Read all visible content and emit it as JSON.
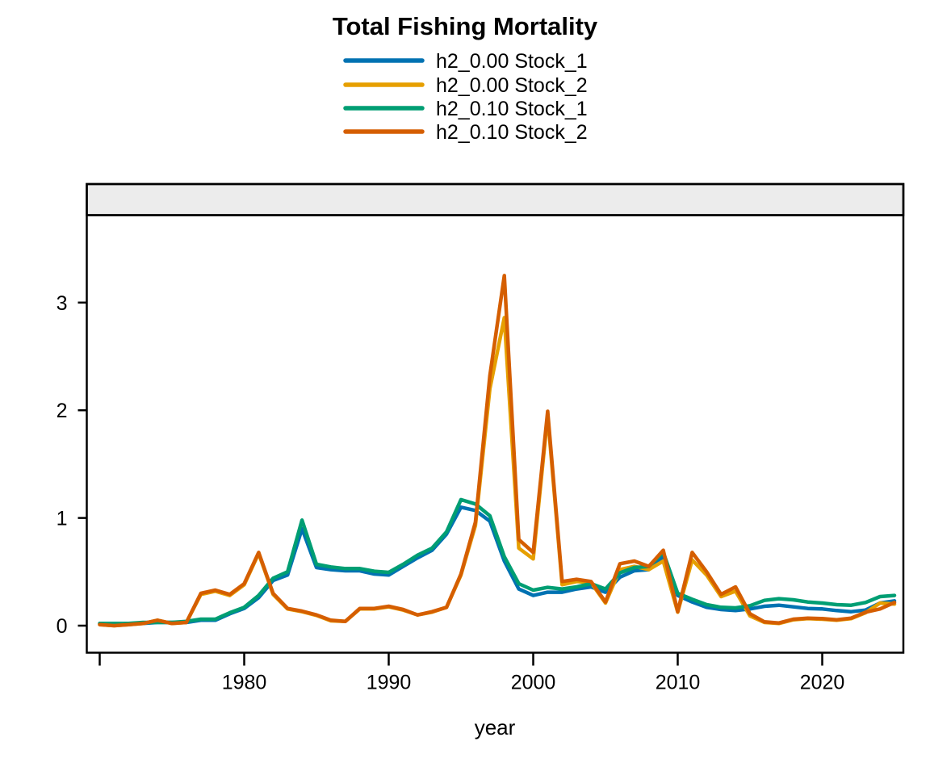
{
  "title": "Total Fishing Mortality",
  "legend": {
    "entries": [
      {
        "label": "h2_0.00 Stock_1",
        "color": "#0072B2"
      },
      {
        "label": "h2_0.00 Stock_2",
        "color": "#E69F00"
      },
      {
        "label": "h2_0.10 Stock_1",
        "color": "#009E73"
      },
      {
        "label": "h2_0.10 Stock_2",
        "color": "#D55E00"
      }
    ]
  },
  "axes": {
    "x": {
      "label": "year",
      "ticks": [
        {
          "year": 1970,
          "label": ""
        },
        {
          "year": 1980,
          "label": "1980"
        },
        {
          "year": 1990,
          "label": "1990"
        },
        {
          "year": 2000,
          "label": "2000"
        },
        {
          "year": 2010,
          "label": "2010"
        },
        {
          "year": 2020,
          "label": "2020"
        }
      ]
    },
    "y": {
      "label": "",
      "ticks": [
        {
          "value": 0,
          "label": "0"
        },
        {
          "value": 1,
          "label": "1"
        },
        {
          "value": 2,
          "label": "2"
        },
        {
          "value": 3,
          "label": "3"
        }
      ]
    }
  },
  "panel": {
    "strip_fill": "#ECECEC",
    "border_color": "#000000",
    "background": "#FFFFFF"
  },
  "chart_data": {
    "type": "line",
    "title": "Total Fishing Mortality",
    "xlabel": "year",
    "ylabel": "",
    "x_range": [
      1969.1,
      2025.7
    ],
    "y_range": [
      -0.25,
      3.81
    ],
    "grid": false,
    "legend_position": "top-center",
    "x": [
      1970,
      1971,
      1972,
      1973,
      1974,
      1975,
      1976,
      1977,
      1978,
      1979,
      1980,
      1981,
      1982,
      1983,
      1984,
      1985,
      1986,
      1987,
      1988,
      1989,
      1990,
      1991,
      1992,
      1993,
      1994,
      1995,
      1996,
      1997,
      1998,
      1999,
      2000,
      2001,
      2002,
      2003,
      2004,
      2005,
      2006,
      2007,
      2008,
      2009,
      2010,
      2011,
      2012,
      2013,
      2014,
      2015,
      2016,
      2017,
      2018,
      2019,
      2020,
      2021,
      2022,
      2023,
      2024,
      2025
    ],
    "series": [
      {
        "name": "h2_0.00 Stock_1",
        "color": "#0072B2",
        "values": [
          0.02,
          0.02,
          0.02,
          0.02,
          0.03,
          0.03,
          0.03,
          0.05,
          0.05,
          0.11,
          0.16,
          0.26,
          0.42,
          0.47,
          0.9,
          0.54,
          0.52,
          0.51,
          0.51,
          0.48,
          0.47,
          0.55,
          0.63,
          0.7,
          0.85,
          1.1,
          1.07,
          0.97,
          0.6,
          0.34,
          0.28,
          0.31,
          0.31,
          0.34,
          0.36,
          0.31,
          0.45,
          0.51,
          0.52,
          0.64,
          0.28,
          0.22,
          0.17,
          0.15,
          0.14,
          0.155,
          0.18,
          0.19,
          0.175,
          0.16,
          0.155,
          0.14,
          0.13,
          0.145,
          0.21,
          0.23
        ]
      },
      {
        "name": "h2_0.00 Stock_2",
        "color": "#E69F00",
        "values": [
          0.01,
          0.0,
          0.01,
          0.02,
          0.05,
          0.02,
          0.03,
          0.29,
          0.32,
          0.28,
          0.38,
          0.67,
          0.29,
          0.155,
          0.13,
          0.095,
          0.045,
          0.04,
          0.155,
          0.155,
          0.175,
          0.145,
          0.1,
          0.125,
          0.17,
          0.47,
          0.93,
          2.2,
          2.86,
          0.72,
          0.62,
          1.95,
          0.38,
          0.41,
          0.4,
          0.21,
          0.52,
          0.55,
          0.52,
          0.6,
          0.125,
          0.61,
          0.47,
          0.27,
          0.32,
          0.09,
          0.03,
          0.02,
          0.055,
          0.065,
          0.06,
          0.05,
          0.065,
          0.12,
          0.21,
          0.2
        ]
      },
      {
        "name": "h2_0.10 Stock_1",
        "color": "#009E73",
        "values": [
          0.02,
          0.02,
          0.02,
          0.03,
          0.03,
          0.03,
          0.04,
          0.06,
          0.06,
          0.12,
          0.17,
          0.28,
          0.44,
          0.5,
          0.98,
          0.57,
          0.545,
          0.53,
          0.53,
          0.505,
          0.495,
          0.57,
          0.655,
          0.72,
          0.87,
          1.17,
          1.13,
          1.02,
          0.64,
          0.39,
          0.33,
          0.355,
          0.34,
          0.36,
          0.39,
          0.34,
          0.49,
          0.54,
          0.55,
          0.68,
          0.3,
          0.245,
          0.195,
          0.17,
          0.165,
          0.185,
          0.235,
          0.25,
          0.24,
          0.22,
          0.21,
          0.195,
          0.19,
          0.215,
          0.27,
          0.28
        ]
      },
      {
        "name": "h2_0.10 Stock_2",
        "color": "#D55E00",
        "values": [
          0.01,
          0.0,
          0.01,
          0.02,
          0.05,
          0.02,
          0.03,
          0.3,
          0.33,
          0.29,
          0.39,
          0.68,
          0.3,
          0.16,
          0.135,
          0.1,
          0.05,
          0.04,
          0.16,
          0.16,
          0.18,
          0.15,
          0.1,
          0.13,
          0.17,
          0.48,
          0.96,
          2.32,
          3.25,
          0.8,
          0.68,
          1.99,
          0.41,
          0.43,
          0.41,
          0.22,
          0.575,
          0.6,
          0.55,
          0.7,
          0.13,
          0.68,
          0.5,
          0.29,
          0.36,
          0.11,
          0.035,
          0.025,
          0.06,
          0.07,
          0.065,
          0.055,
          0.07,
          0.125,
          0.155,
          0.215
        ]
      }
    ]
  }
}
